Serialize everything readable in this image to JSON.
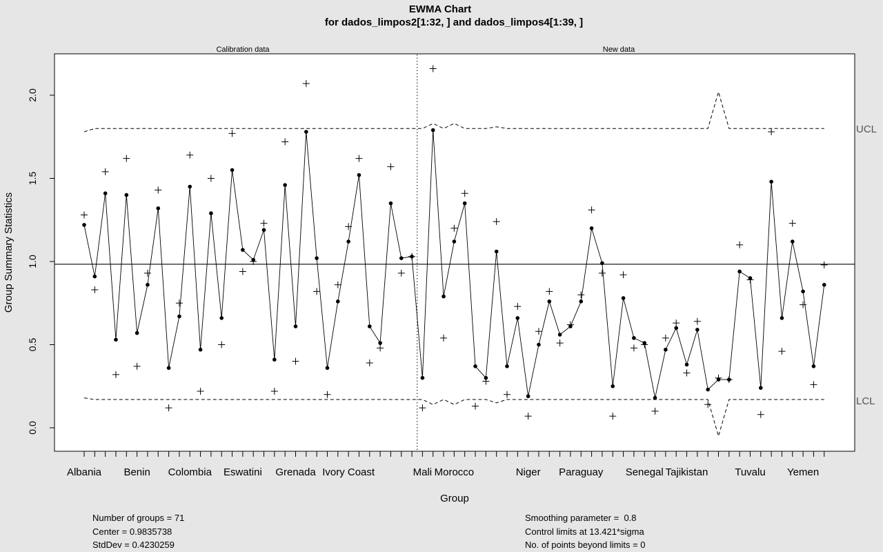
{
  "chart_data": {
    "type": "line",
    "title": "EWMA Chart",
    "subtitle": "for dados_limpos2[1:32, ] and dados_limpos4[1:39, ]",
    "xlabel": "Group",
    "ylabel": "Group Summary Statistics",
    "ylim": [
      -0.15,
      2.25
    ],
    "yticks": [
      0.0,
      0.5,
      1.0,
      1.5,
      2.0
    ],
    "ytick_labels": [
      "0.0",
      "0.5",
      "1.0",
      "1.5",
      "2.0"
    ],
    "x_tick_labels": [
      {
        "index": 1,
        "label": "Albania"
      },
      {
        "index": 6,
        "label": "Benin"
      },
      {
        "index": 11,
        "label": "Colombia"
      },
      {
        "index": 16,
        "label": "Eswatini"
      },
      {
        "index": 21,
        "label": "Grenada"
      },
      {
        "index": 26,
        "label": "Ivory Coast"
      },
      {
        "index": 33,
        "label": "Mali"
      },
      {
        "index": 36,
        "label": "Morocco"
      },
      {
        "index": 43,
        "label": "Niger"
      },
      {
        "index": 48,
        "label": "Paraguay"
      },
      {
        "index": 54,
        "label": "Senegal"
      },
      {
        "index": 58,
        "label": "Tajikistan"
      },
      {
        "index": 64,
        "label": "Tuvalu"
      },
      {
        "index": 69,
        "label": "Yemen"
      }
    ],
    "n_groups": 71,
    "calibration_count": 32,
    "section_labels": {
      "calibration": "Calibration data",
      "new": "New data"
    },
    "center": 0.9835738,
    "ucl_label": "UCL",
    "lcl_label": "LCL",
    "series": [
      {
        "role": "statistics",
        "marker": "plus",
        "values": [
          1.28,
          0.83,
          1.54,
          0.32,
          1.62,
          0.37,
          0.93,
          1.43,
          0.12,
          0.75,
          1.64,
          0.22,
          1.5,
          0.5,
          1.77,
          0.94,
          1.0,
          1.23,
          0.22,
          1.72,
          0.4,
          2.07,
          0.82,
          0.2,
          0.86,
          1.21,
          1.62,
          0.39,
          0.48,
          1.57,
          0.93,
          1.03,
          0.12,
          2.16,
          0.54,
          1.2,
          1.41,
          0.13,
          0.28,
          1.24,
          0.2,
          0.73,
          0.07,
          0.58,
          0.82,
          0.51,
          0.62,
          0.8,
          1.31,
          0.93,
          0.07,
          0.92,
          0.48,
          0.5,
          0.1,
          0.54,
          0.63,
          0.33,
          0.64,
          0.14,
          0.3,
          0.29,
          1.1,
          0.89,
          0.08,
          1.78,
          0.46,
          1.23,
          0.74,
          0.26,
          0.98
        ]
      },
      {
        "role": "ewma",
        "marker": "dot",
        "values": [
          1.22,
          0.91,
          1.41,
          0.53,
          1.4,
          0.57,
          0.86,
          1.32,
          0.36,
          0.67,
          1.45,
          0.47,
          1.29,
          0.66,
          1.55,
          1.07,
          1.01,
          1.19,
          0.41,
          1.46,
          0.61,
          1.78,
          1.02,
          0.36,
          0.76,
          1.12,
          1.52,
          0.61,
          0.51,
          1.35,
          1.02,
          1.03,
          0.3,
          1.79,
          0.79,
          1.12,
          1.35,
          0.37,
          0.3,
          1.06,
          0.37,
          0.66,
          0.19,
          0.5,
          0.76,
          0.56,
          0.61,
          0.76,
          1.2,
          0.99,
          0.25,
          0.78,
          0.54,
          0.51,
          0.18,
          0.47,
          0.6,
          0.38,
          0.59,
          0.23,
          0.29,
          0.29,
          0.94,
          0.9,
          0.24,
          1.48,
          0.66,
          1.12,
          0.82,
          0.37,
          0.86
        ]
      },
      {
        "role": "ucl",
        "style": "dashed",
        "values": [
          1.78,
          1.8,
          1.8,
          1.8,
          1.8,
          1.8,
          1.8,
          1.8,
          1.8,
          1.8,
          1.8,
          1.8,
          1.8,
          1.8,
          1.8,
          1.8,
          1.8,
          1.8,
          1.8,
          1.8,
          1.8,
          1.8,
          1.8,
          1.8,
          1.8,
          1.8,
          1.8,
          1.8,
          1.8,
          1.8,
          1.8,
          1.8,
          1.8,
          1.83,
          1.8,
          1.83,
          1.8,
          1.8,
          1.8,
          1.81,
          1.8,
          1.8,
          1.8,
          1.8,
          1.8,
          1.8,
          1.8,
          1.8,
          1.8,
          1.8,
          1.8,
          1.8,
          1.8,
          1.8,
          1.8,
          1.8,
          1.8,
          1.8,
          1.8,
          1.8,
          2.02,
          1.8,
          1.8,
          1.8,
          1.8,
          1.8,
          1.8,
          1.8,
          1.8,
          1.8,
          1.8
        ]
      },
      {
        "role": "lcl",
        "style": "dashed",
        "values": [
          0.18,
          0.17,
          0.17,
          0.17,
          0.17,
          0.17,
          0.17,
          0.17,
          0.17,
          0.17,
          0.17,
          0.17,
          0.17,
          0.17,
          0.17,
          0.17,
          0.17,
          0.17,
          0.17,
          0.17,
          0.17,
          0.17,
          0.17,
          0.17,
          0.17,
          0.17,
          0.17,
          0.17,
          0.17,
          0.17,
          0.17,
          0.17,
          0.17,
          0.14,
          0.17,
          0.14,
          0.17,
          0.17,
          0.17,
          0.15,
          0.17,
          0.17,
          0.17,
          0.17,
          0.17,
          0.17,
          0.17,
          0.17,
          0.17,
          0.17,
          0.17,
          0.17,
          0.17,
          0.17,
          0.17,
          0.17,
          0.17,
          0.17,
          0.17,
          0.17,
          -0.05,
          0.17,
          0.17,
          0.17,
          0.17,
          0.17,
          0.17,
          0.17,
          0.17,
          0.17,
          0.17
        ]
      }
    ]
  },
  "stats": {
    "groups": "Number of groups = 71",
    "center": "Center = 0.9835738",
    "stddev": "StdDev = 0.4230259",
    "smoothing": "Smoothing parameter =  0.8",
    "limits": "Control limits at 13.421*sigma",
    "beyond": "No. of points beyond limits = 0"
  }
}
